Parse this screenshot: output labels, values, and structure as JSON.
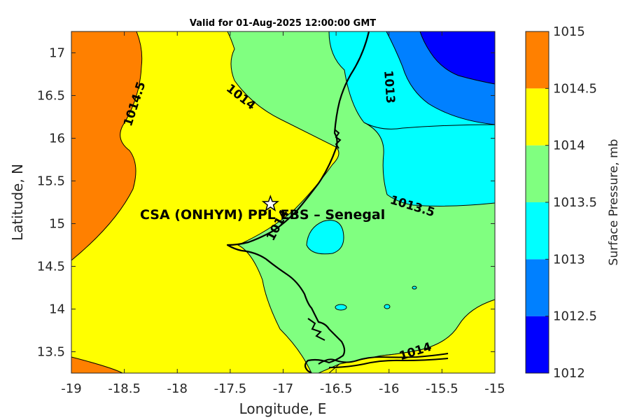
{
  "chart_data": {
    "type": "contour_map",
    "title": "Valid for 01-Aug-2025 12:00:00 GMT",
    "xlabel": "Longitude, E",
    "ylabel": "Latitude, N",
    "xlim": [
      -19,
      -15
    ],
    "ylim": [
      13.25,
      17.25
    ],
    "x_ticks": [
      -19,
      -18.5,
      -18,
      -17.5,
      -17,
      -16.5,
      -16,
      -15.5,
      -15
    ],
    "y_ticks": [
      13.5,
      14,
      14.5,
      15,
      15.5,
      16,
      16.5,
      17
    ],
    "site": {
      "name": "CSA (ONHYM) PPL EBS  – Senegal",
      "lon": -17.12,
      "lat": 15.23
    },
    "contour_labels": [
      {
        "text": "1014.5",
        "lon": -18.4,
        "lat": 16.4,
        "angle": -72
      },
      {
        "text": "1014",
        "lon": -17.4,
        "lat": 16.48,
        "angle": 38
      },
      {
        "text": "1013",
        "lon": -16.0,
        "lat": 16.6,
        "angle": 86
      },
      {
        "text": "1013.5",
        "lon": -15.78,
        "lat": 15.2,
        "angle": 17
      },
      {
        "text": "1014",
        "lon": -17.05,
        "lat": 14.98,
        "angle": -62
      },
      {
        "text": "1014",
        "lon": -15.75,
        "lat": 13.5,
        "angle": -18
      }
    ],
    "colorbar": {
      "label": "Surface Pressure, mb",
      "levels": [
        1012,
        1012.5,
        1013,
        1013.5,
        1014,
        1014.5,
        1015
      ],
      "tick_labels": [
        "1012",
        "1012.5",
        "1013",
        "1013.5",
        "1014",
        "1014.5",
        "1015"
      ],
      "colors": [
        "#0000ff",
        "#0080ff",
        "#00ffff",
        "#80ff80",
        "#ffff00",
        "#ff8000",
        "#ff0000"
      ]
    }
  },
  "colors": {
    "outline": "#000000",
    "axis": "#262626",
    "background": "#ffffff"
  }
}
